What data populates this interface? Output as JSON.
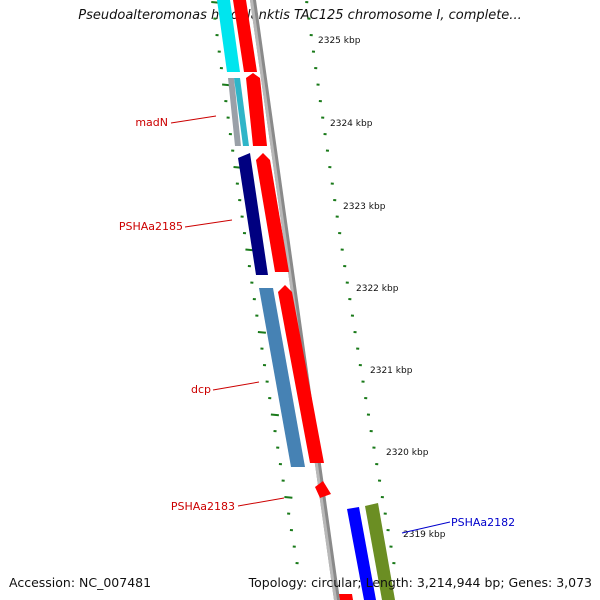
{
  "title": "Pseudoalteromonas haloplanktis TAC125 chromosome I, complete...",
  "footer": {
    "accession": "Accession: NC_007481",
    "summary": "Topology: circular; Length: 3,214,944 bp; Genes: 3,073"
  },
  "colors": {
    "backbone": "#808080",
    "tick": "#1a7a1a",
    "forward_gene": "#ff0000",
    "label_reverse": "#cc0000",
    "label_forward": "#0000cc"
  },
  "scale_labels": [
    "2325 kbp",
    "2324 kbp",
    "2323 kbp",
    "2322 kbp",
    "2321 kbp",
    "2320 kbp",
    "2319 kbp"
  ],
  "gene_labels": [
    {
      "name": "madN",
      "color": "#cc0000"
    },
    {
      "name": "PSHAa2185",
      "color": "#cc0000"
    },
    {
      "name": "dcp",
      "color": "#cc0000"
    },
    {
      "name": "PSHAa2183",
      "color": "#cc0000"
    },
    {
      "name": "PSHAa2182",
      "color": "#0000cc"
    }
  ],
  "genes": [
    {
      "strand": "reverse",
      "color": "#00ffff"
    },
    {
      "strand": "reverse",
      "color": "#9aa0a8"
    },
    {
      "strand": "reverse",
      "color": "#2fb5c8"
    },
    {
      "strand": "reverse",
      "color": "#000080"
    },
    {
      "strand": "reverse",
      "color": "#4682b4"
    },
    {
      "strand": "forward",
      "color": "#ff0000"
    },
    {
      "strand": "forward",
      "color": "#ff0000"
    },
    {
      "strand": "forward",
      "color": "#ff0000"
    },
    {
      "strand": "forward",
      "color": "#ff0000"
    },
    {
      "strand": "forward",
      "color": "#0000ff"
    },
    {
      "strand": "forward",
      "color": "#6b8e23"
    }
  ]
}
